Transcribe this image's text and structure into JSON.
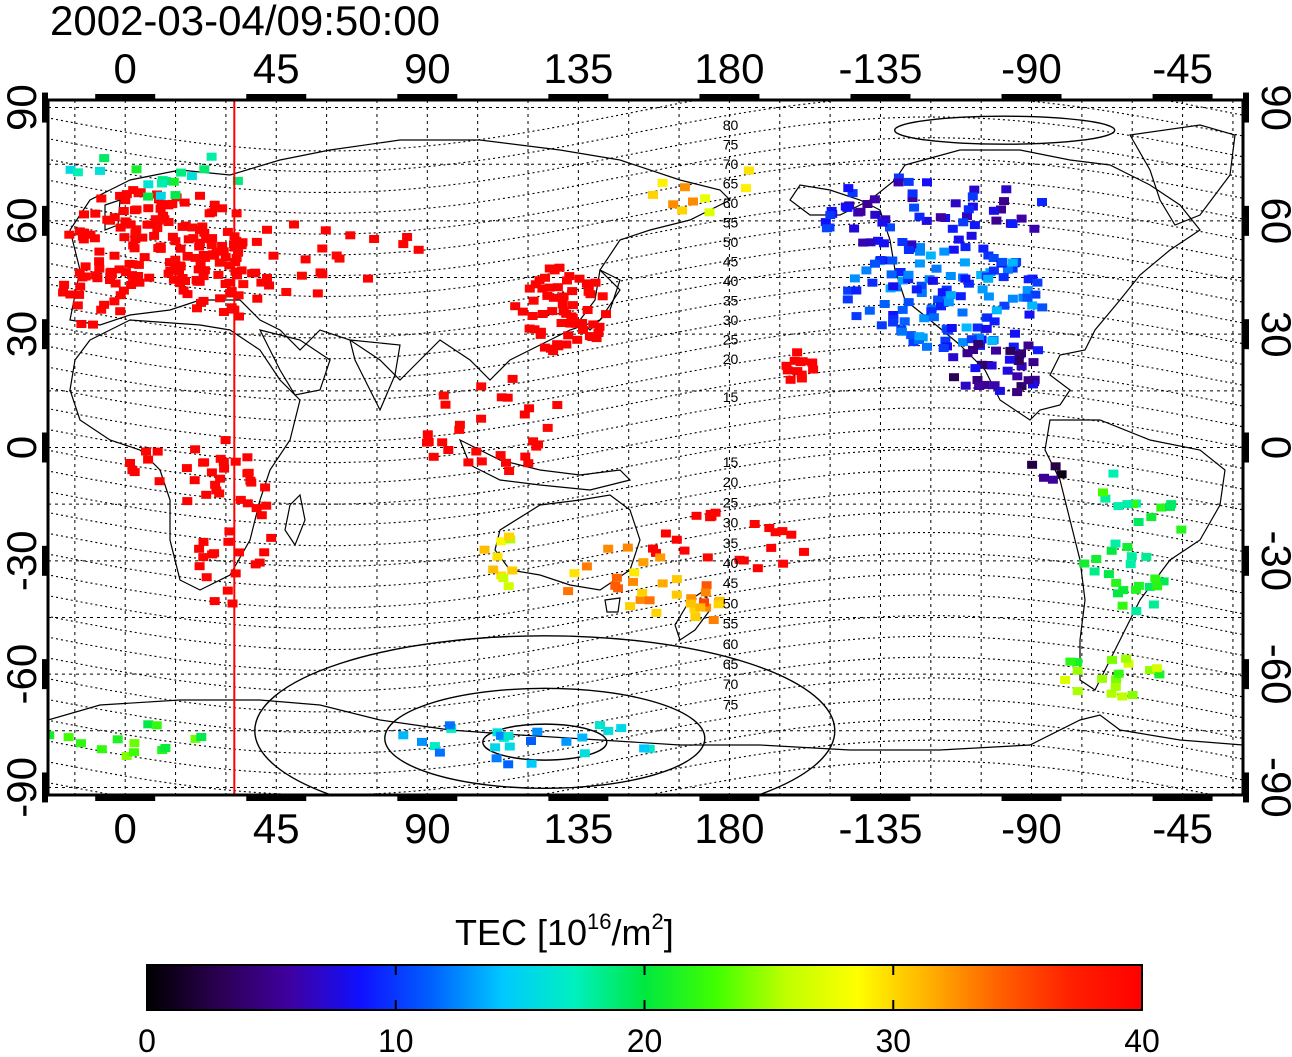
{
  "title": "2002-03-04/09:50:00",
  "map": {
    "lon_ticks_top": [
      "0",
      "45",
      "90",
      "135",
      "180",
      "-135",
      "-90",
      "-45"
    ],
    "lon_ticks_bottom": [
      "0",
      "45",
      "90",
      "135",
      "180",
      "-135",
      "-90",
      "-45"
    ],
    "lat_ticks_left": [
      "90",
      "60",
      "30",
      "0",
      "-30",
      "-60",
      "-90"
    ],
    "lat_ticks_right": [
      "90",
      "60",
      "30",
      "0",
      "-30",
      "-60",
      "-90"
    ],
    "lon_tick_values": [
      0,
      45,
      90,
      135,
      180,
      225,
      270,
      315
    ],
    "lat_tick_values": [
      90,
      60,
      30,
      0,
      -30,
      -60,
      -90
    ],
    "lon_range": [
      -23,
      333
    ],
    "lat_range": [
      -92,
      92
    ],
    "terminator_lon": 32.5,
    "terminator_color": "#ff0000",
    "contour_labels_north": [
      "80",
      "75",
      "70",
      "65",
      "60",
      "55",
      "50",
      "45",
      "40",
      "35",
      "30",
      "25",
      "20",
      "15"
    ],
    "contour_labels_south": [
      "15",
      "20",
      "25",
      "30",
      "35",
      "40",
      "45",
      "50",
      "55",
      "60",
      "65",
      "70",
      "75"
    ]
  },
  "colorbar": {
    "title_prefix": "TEC  [10",
    "title_sup1": "16",
    "title_mid": "/m",
    "title_sup2": "2",
    "title_suffix": "]",
    "tick_labels": [
      "0",
      "10",
      "20",
      "30",
      "40"
    ],
    "tick_values": [
      0,
      10,
      20,
      30,
      40
    ],
    "range": [
      0,
      40
    ],
    "colormap": [
      "#000000",
      "#2a0050",
      "#4000a0",
      "#1010ff",
      "#0060ff",
      "#00c8ff",
      "#00f0c0",
      "#00e840",
      "#40ff00",
      "#c0ff00",
      "#ffff00",
      "#ffb000",
      "#ff6000",
      "#ff2000",
      "#ff0000"
    ]
  },
  "tec_clusters": [
    {
      "lon": 10,
      "lat": 55,
      "rx": 28,
      "ry": 14,
      "tec": 40,
      "n": 140
    },
    {
      "lon": -10,
      "lat": 40,
      "rx": 10,
      "ry": 8,
      "tec": 40,
      "n": 20
    },
    {
      "lon": 30,
      "lat": 45,
      "rx": 14,
      "ry": 12,
      "tec": 40,
      "n": 30
    },
    {
      "lon": 130,
      "lat": 36,
      "rx": 14,
      "ry": 12,
      "tec": 40,
      "n": 60
    },
    {
      "lon": 60,
      "lat": 50,
      "rx": 35,
      "ry": 10,
      "tec": 40,
      "n": 25
    },
    {
      "lon": 30,
      "lat": -20,
      "rx": 14,
      "ry": 22,
      "tec": 40,
      "n": 35
    },
    {
      "lon": 20,
      "lat": -5,
      "rx": 22,
      "ry": 8,
      "tec": 40,
      "n": 18
    },
    {
      "lon": 110,
      "lat": 5,
      "rx": 22,
      "ry": 14,
      "tec": 40,
      "n": 30
    },
    {
      "lon": 180,
      "lat": -25,
      "rx": 25,
      "ry": 8,
      "tec": 40,
      "n": 22
    },
    {
      "lon": 200,
      "lat": 22,
      "rx": 6,
      "ry": 5,
      "tec": 40,
      "n": 12
    },
    {
      "lon": 150,
      "lat": -35,
      "rx": 20,
      "ry": 10,
      "tec": 32,
      "n": 20
    },
    {
      "lon": 172,
      "lat": -42,
      "rx": 6,
      "ry": 6,
      "tec": 33,
      "n": 14
    },
    {
      "lon": 110,
      "lat": -30,
      "rx": 8,
      "ry": 8,
      "tec": 28,
      "n": 10
    },
    {
      "lon": 245,
      "lat": 40,
      "rx": 30,
      "ry": 14,
      "tec": 11,
      "n": 120
    },
    {
      "lon": 240,
      "lat": 62,
      "rx": 35,
      "ry": 10,
      "tec": 8,
      "n": 60
    },
    {
      "lon": 260,
      "lat": 22,
      "rx": 15,
      "ry": 8,
      "tec": 6,
      "n": 35
    },
    {
      "lon": 275,
      "lat": -5,
      "rx": 6,
      "ry": 4,
      "tec": 3,
      "n": 5
    },
    {
      "lon": 300,
      "lat": -25,
      "rx": 15,
      "ry": 20,
      "tec": 20,
      "n": 35
    },
    {
      "lon": 295,
      "lat": -60,
      "rx": 18,
      "ry": 6,
      "tec": 24,
      "n": 18
    },
    {
      "lon": 120,
      "lat": -78,
      "rx": 40,
      "ry": 6,
      "tec": 14,
      "n": 25
    },
    {
      "lon": 0,
      "lat": -78,
      "rx": 25,
      "ry": 5,
      "tec": 22,
      "n": 14
    },
    {
      "lon": 10,
      "lat": 72,
      "rx": 30,
      "ry": 6,
      "tec": 18,
      "n": 18
    },
    {
      "lon": 170,
      "lat": 70,
      "rx": 20,
      "ry": 8,
      "tec": 30,
      "n": 10
    }
  ]
}
